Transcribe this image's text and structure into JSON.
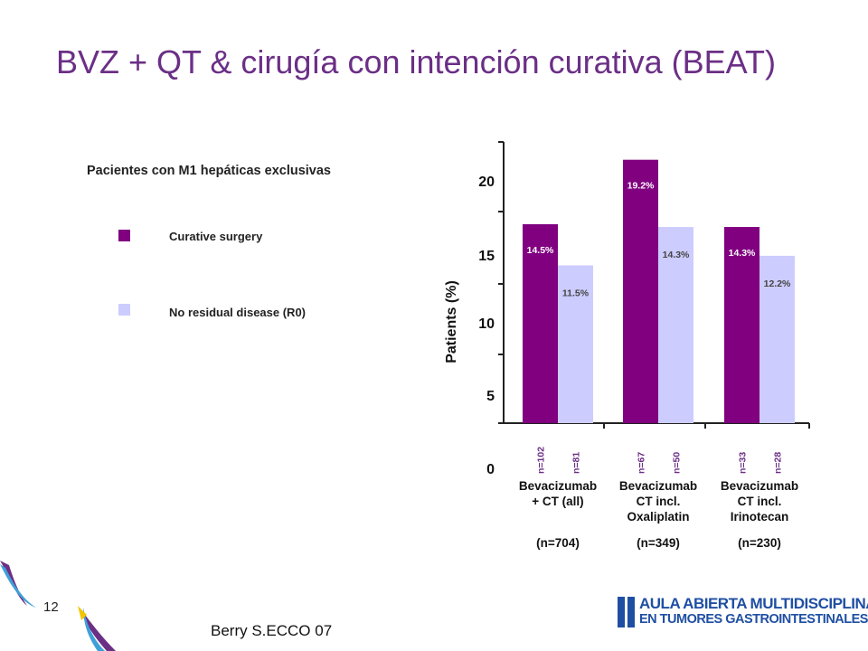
{
  "slide": {
    "title": "BVZ + QT & cirugía con intención curativa (BEAT)",
    "page_number": "12",
    "source": "Berry S.ECCO 07",
    "logo_line1": "AULA ABIERTA MULTIDISCIPLINAR",
    "logo_line2": "EN TUMORES GASTROINTESTINALES"
  },
  "colors": {
    "title": "#6b2f86",
    "curative": "#800080",
    "r0": "#ccccff",
    "logo": "#1f4fa3"
  },
  "chart_data": {
    "type": "bar",
    "title": "Pacientes con M1 hepáticas exclusivas",
    "ylabel": "Patients (%)",
    "ylim": [
      0,
      20
    ],
    "yticks": [
      "0",
      "5",
      "10",
      "15",
      "20"
    ],
    "categories": [
      {
        "lines": [
          "Bevacizumab",
          "+ CT (all)"
        ],
        "n_total": "(n=704)"
      },
      {
        "lines": [
          "Bevacizumab",
          "CT incl.",
          "Oxaliplatin"
        ],
        "n_total": "(n=349)"
      },
      {
        "lines": [
          "Bevacizumab",
          "CT incl.",
          "Irinotecan"
        ],
        "n_total": "(n=230)"
      }
    ],
    "series": [
      {
        "name": "Curative surgery",
        "color": "#800080",
        "values": [
          14.5,
          19.2,
          14.3
        ],
        "labels": [
          "14.5%",
          "19.2%",
          "14.3%"
        ],
        "n": [
          "n=102",
          "n=67",
          "n=33"
        ]
      },
      {
        "name": "No residual disease (R0)",
        "color": "#ccccff",
        "values": [
          11.5,
          14.3,
          12.2
        ],
        "labels": [
          "11.5%",
          "14.3%",
          "12.2%"
        ],
        "n": [
          "n=81",
          "n=50",
          "n=28"
        ]
      }
    ],
    "legend_position": "left"
  }
}
